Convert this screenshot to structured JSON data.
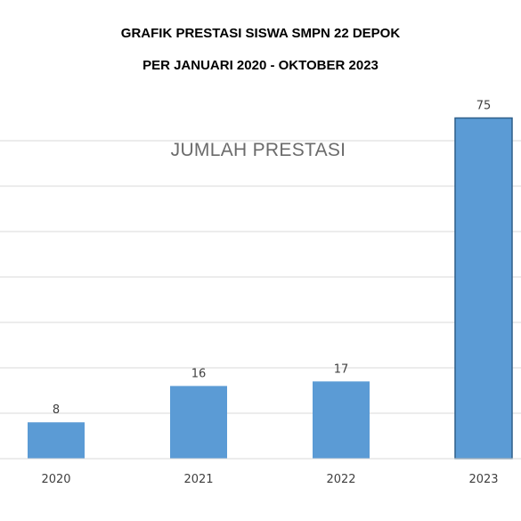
{
  "document": {
    "title_line1": "GRAFIK PRESTASI SISWA SMPN 22 DEPOK",
    "title_line2": "PER JANUARI 2020 - OKTOBER 2023"
  },
  "chart_data": {
    "type": "bar",
    "title": "JUMLAH PRESTASI",
    "categories": [
      "2020",
      "2021",
      "2022",
      "2023"
    ],
    "values": [
      8,
      16,
      17,
      75
    ],
    "xlabel": "",
    "ylabel": "",
    "ylim": [
      0,
      80
    ],
    "grid": true,
    "legend": "none",
    "colors": {
      "bar": "#5b9bd5",
      "bar_highlight_border": "#2e5f8a",
      "grid": "#d9d9d9",
      "text": "#404040"
    }
  }
}
